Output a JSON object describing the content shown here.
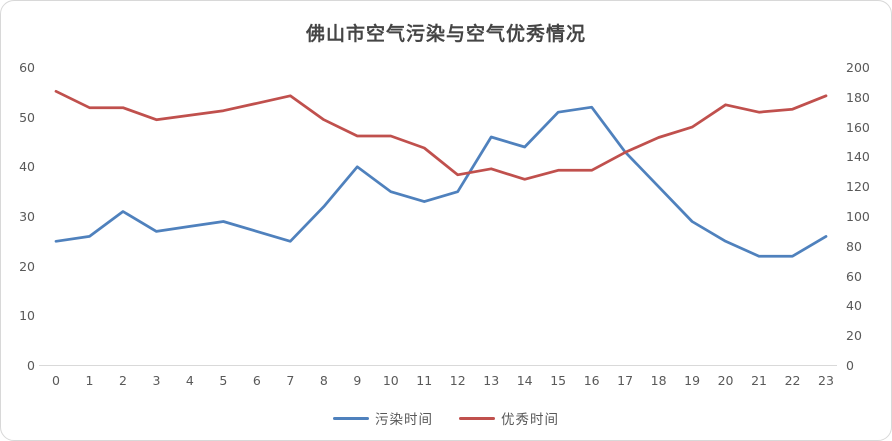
{
  "title": "佛山市空气污染与空气优秀情况",
  "colors": {
    "pollution_line": "#4F81BD",
    "excellent_line": "#C0504D",
    "axis_text": "#595959",
    "title_text": "#454545",
    "axis_line": "#D9D9D9"
  },
  "legend": [
    {
      "label": "污染时间",
      "color": "#4F81BD"
    },
    {
      "label": "优秀时间",
      "color": "#C0504D"
    }
  ],
  "chart_data": {
    "type": "line",
    "title": "佛山市空气污染与空气优秀情况",
    "grid": false,
    "legend_position": "bottom",
    "x": [
      0,
      1,
      2,
      3,
      4,
      5,
      6,
      7,
      8,
      9,
      10,
      11,
      12,
      13,
      14,
      15,
      16,
      17,
      18,
      19,
      20,
      21,
      22,
      23
    ],
    "x_tick_labels": [
      "0",
      "1",
      "2",
      "3",
      "4",
      "5",
      "6",
      "7",
      "8",
      "9",
      "10",
      "11",
      "12",
      "13",
      "14",
      "15",
      "16",
      "17",
      "18",
      "19",
      "20",
      "21",
      "22",
      "23"
    ],
    "left_axis": {
      "min": 0,
      "max": 60,
      "step": 10,
      "ticks": [
        0,
        10,
        20,
        30,
        40,
        50,
        60
      ]
    },
    "right_axis": {
      "min": 0,
      "max": 200,
      "step": 20,
      "ticks": [
        0,
        20,
        40,
        60,
        80,
        100,
        120,
        140,
        160,
        180,
        200
      ]
    },
    "series": [
      {
        "name": "污染时间",
        "axis": "left",
        "color": "#4F81BD",
        "values": [
          25,
          26,
          31,
          27,
          28,
          29,
          27,
          25,
          32,
          40,
          35,
          33,
          35,
          46,
          44,
          51,
          52,
          43,
          36,
          29,
          25,
          22,
          22,
          26
        ]
      },
      {
        "name": "优秀时间",
        "axis": "right",
        "color": "#C0504D",
        "values": [
          184,
          173,
          173,
          165,
          168,
          171,
          176,
          181,
          165,
          154,
          154,
          146,
          128,
          132,
          125,
          131,
          131,
          143,
          153,
          160,
          175,
          170,
          172,
          181
        ]
      }
    ]
  }
}
